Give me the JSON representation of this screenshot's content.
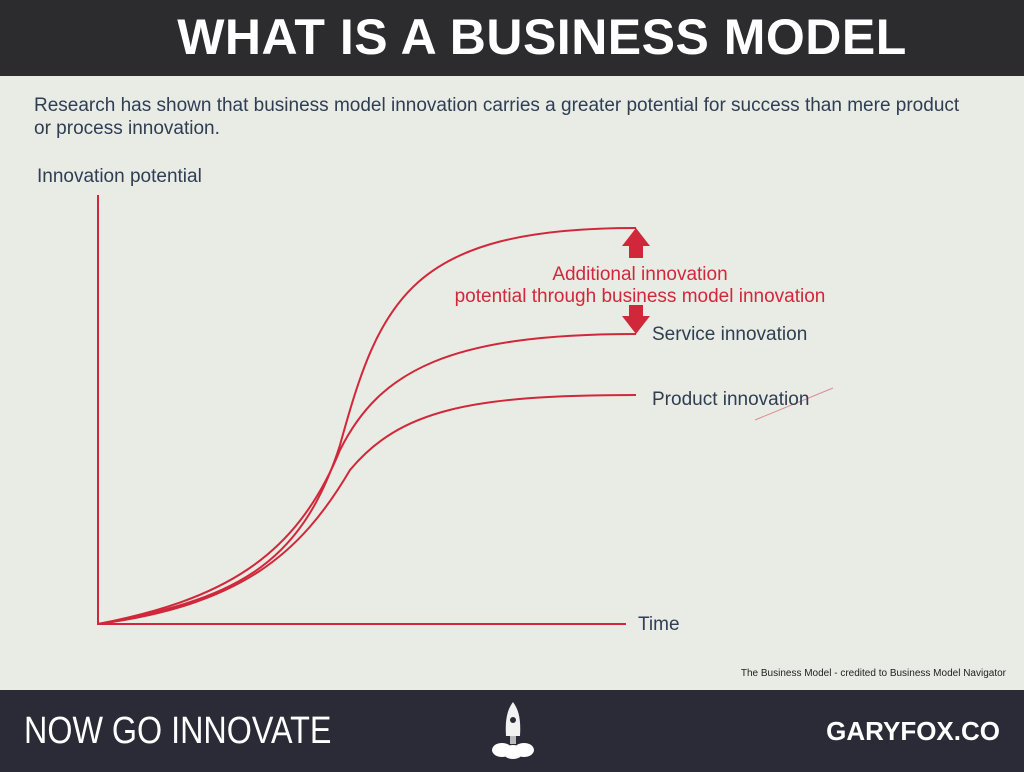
{
  "header": {
    "title": "WHAT IS A BUSINESS MODEL"
  },
  "intro": "Research has shown that business model innovation carries a greater potential for success than mere product or process innovation.",
  "diagram": {
    "y_axis_label": "Innovation potential",
    "x_axis_label": "Time",
    "annotation_line1": "Additional innovation",
    "annotation_line2": "potential through business model innovation",
    "service_label": "Service innovation",
    "product_label": "Product innovation",
    "curve_color": "#d0283a",
    "text_color": "#2f3e52"
  },
  "credit": "The Business Model - credited to Business Model Navigator",
  "footer": {
    "left": "NOW GO INNOVATE",
    "right": "GARYFOX.CO",
    "icon": "rocket-icon"
  }
}
